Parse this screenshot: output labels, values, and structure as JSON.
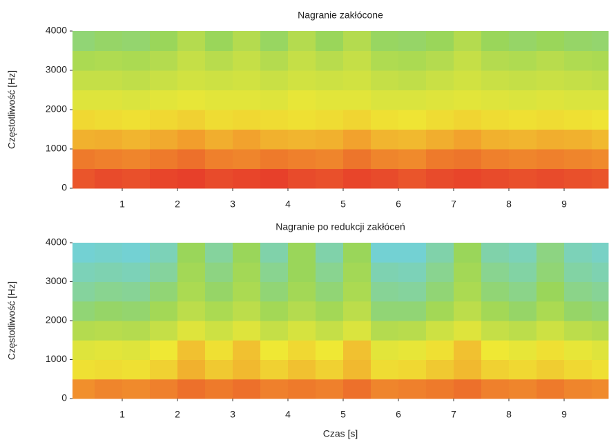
{
  "chart_data": [
    {
      "type": "heatmap",
      "title": "Nagranie zakłócone",
      "ylabel": "Częstotliwość [Hz]",
      "xlim": [
        0.1,
        9.8
      ],
      "ylim": [
        0,
        4000
      ],
      "xticks": [
        1,
        2,
        3,
        4,
        5,
        6,
        7,
        8,
        9
      ],
      "yticks": [
        0,
        1000,
        2000,
        3000,
        4000
      ],
      "xbins": [
        0.1,
        0.5,
        1,
        1.5,
        2,
        2.5,
        3,
        3.5,
        4,
        4.5,
        5,
        5.5,
        6,
        6.5,
        7,
        7.5,
        8,
        8.5,
        9,
        9.5,
        9.8
      ],
      "ybins": [
        0,
        500,
        1000,
        1500,
        2000,
        2500,
        3000,
        3500,
        4000
      ],
      "zlim": [
        0,
        1
      ],
      "colormap": [
        "#1f3f9e",
        "#6fd0e0",
        "#9ad65a",
        "#efe834",
        "#f29a2c",
        "#e5302a"
      ],
      "values": [
        [
          0.93,
          0.95,
          0.94,
          0.96,
          0.97,
          0.95,
          0.96,
          0.97,
          0.95,
          0.94,
          0.96,
          0.95,
          0.93,
          0.95,
          0.96,
          0.95,
          0.94,
          0.95,
          0.94,
          0.93
        ],
        [
          0.86,
          0.85,
          0.84,
          0.86,
          0.88,
          0.85,
          0.84,
          0.86,
          0.85,
          0.84,
          0.87,
          0.84,
          0.83,
          0.86,
          0.87,
          0.85,
          0.84,
          0.85,
          0.84,
          0.83
        ],
        [
          0.74,
          0.75,
          0.73,
          0.76,
          0.79,
          0.75,
          0.78,
          0.74,
          0.73,
          0.74,
          0.78,
          0.73,
          0.72,
          0.75,
          0.78,
          0.74,
          0.73,
          0.75,
          0.74,
          0.72
        ],
        [
          0.64,
          0.63,
          0.62,
          0.64,
          0.66,
          0.63,
          0.64,
          0.63,
          0.62,
          0.63,
          0.65,
          0.62,
          0.61,
          0.63,
          0.65,
          0.63,
          0.62,
          0.63,
          0.62,
          0.61
        ],
        [
          0.56,
          0.56,
          0.55,
          0.57,
          0.58,
          0.57,
          0.57,
          0.56,
          0.58,
          0.57,
          0.57,
          0.55,
          0.55,
          0.56,
          0.57,
          0.56,
          0.55,
          0.56,
          0.55,
          0.55
        ],
        [
          0.5,
          0.5,
          0.49,
          0.51,
          0.53,
          0.52,
          0.53,
          0.51,
          0.53,
          0.52,
          0.53,
          0.5,
          0.49,
          0.51,
          0.53,
          0.51,
          0.5,
          0.51,
          0.5,
          0.49
        ],
        [
          0.44,
          0.45,
          0.44,
          0.46,
          0.5,
          0.47,
          0.5,
          0.46,
          0.5,
          0.47,
          0.5,
          0.45,
          0.44,
          0.46,
          0.5,
          0.46,
          0.45,
          0.47,
          0.45,
          0.44
        ],
        [
          0.36,
          0.38,
          0.37,
          0.4,
          0.46,
          0.4,
          0.46,
          0.39,
          0.46,
          0.4,
          0.46,
          0.39,
          0.38,
          0.4,
          0.46,
          0.4,
          0.38,
          0.4,
          0.38,
          0.37
        ]
      ]
    },
    {
      "type": "heatmap",
      "title": "Nagranie po redukcji zakłóceń",
      "ylabel": "Częstotliwość [Hz]",
      "xlabel": "Czas [s]",
      "xlim": [
        0.1,
        9.8
      ],
      "ylim": [
        0,
        4000
      ],
      "xticks": [
        1,
        2,
        3,
        4,
        5,
        6,
        7,
        8,
        9
      ],
      "yticks": [
        0,
        1000,
        2000,
        3000,
        4000
      ],
      "xbins": [
        0.1,
        0.5,
        1,
        1.5,
        2,
        2.5,
        3,
        3.5,
        4,
        4.5,
        5,
        5.5,
        6,
        6.5,
        7,
        7.5,
        8,
        8.5,
        9,
        9.5,
        9.8
      ],
      "ybins": [
        0,
        500,
        1000,
        1500,
        2000,
        2500,
        3000,
        3500,
        4000
      ],
      "zlim": [
        0,
        1
      ],
      "colormap": [
        "#1f3f9e",
        "#6fd0e0",
        "#9ad65a",
        "#efe834",
        "#f29a2c",
        "#e5302a"
      ],
      "values": [
        [
          0.82,
          0.84,
          0.83,
          0.85,
          0.88,
          0.86,
          0.88,
          0.85,
          0.86,
          0.85,
          0.88,
          0.84,
          0.85,
          0.86,
          0.88,
          0.85,
          0.84,
          0.86,
          0.84,
          0.83
        ],
        [
          0.62,
          0.63,
          0.62,
          0.66,
          0.74,
          0.68,
          0.72,
          0.66,
          0.7,
          0.66,
          0.72,
          0.63,
          0.64,
          0.68,
          0.72,
          0.66,
          0.64,
          0.67,
          0.64,
          0.62
        ],
        [
          0.56,
          0.57,
          0.56,
          0.6,
          0.7,
          0.62,
          0.7,
          0.6,
          0.64,
          0.6,
          0.7,
          0.57,
          0.58,
          0.62,
          0.7,
          0.6,
          0.58,
          0.62,
          0.58,
          0.56
        ],
        [
          0.46,
          0.47,
          0.46,
          0.5,
          0.56,
          0.52,
          0.56,
          0.5,
          0.54,
          0.5,
          0.55,
          0.46,
          0.47,
          0.52,
          0.56,
          0.5,
          0.48,
          0.52,
          0.48,
          0.46
        ],
        [
          0.36,
          0.38,
          0.37,
          0.42,
          0.48,
          0.44,
          0.48,
          0.42,
          0.46,
          0.42,
          0.48,
          0.36,
          0.36,
          0.42,
          0.48,
          0.42,
          0.38,
          0.44,
          0.38,
          0.36
        ],
        [
          0.3,
          0.32,
          0.31,
          0.36,
          0.44,
          0.38,
          0.44,
          0.36,
          0.42,
          0.36,
          0.44,
          0.31,
          0.3,
          0.36,
          0.44,
          0.36,
          0.33,
          0.4,
          0.33,
          0.31
        ],
        [
          0.26,
          0.27,
          0.26,
          0.3,
          0.42,
          0.34,
          0.42,
          0.32,
          0.4,
          0.32,
          0.42,
          0.27,
          0.26,
          0.32,
          0.42,
          0.32,
          0.29,
          0.36,
          0.29,
          0.27
        ],
        [
          0.22,
          0.23,
          0.22,
          0.26,
          0.4,
          0.3,
          0.4,
          0.28,
          0.4,
          0.28,
          0.4,
          0.22,
          0.22,
          0.28,
          0.4,
          0.28,
          0.26,
          0.34,
          0.26,
          0.24
        ]
      ]
    }
  ]
}
